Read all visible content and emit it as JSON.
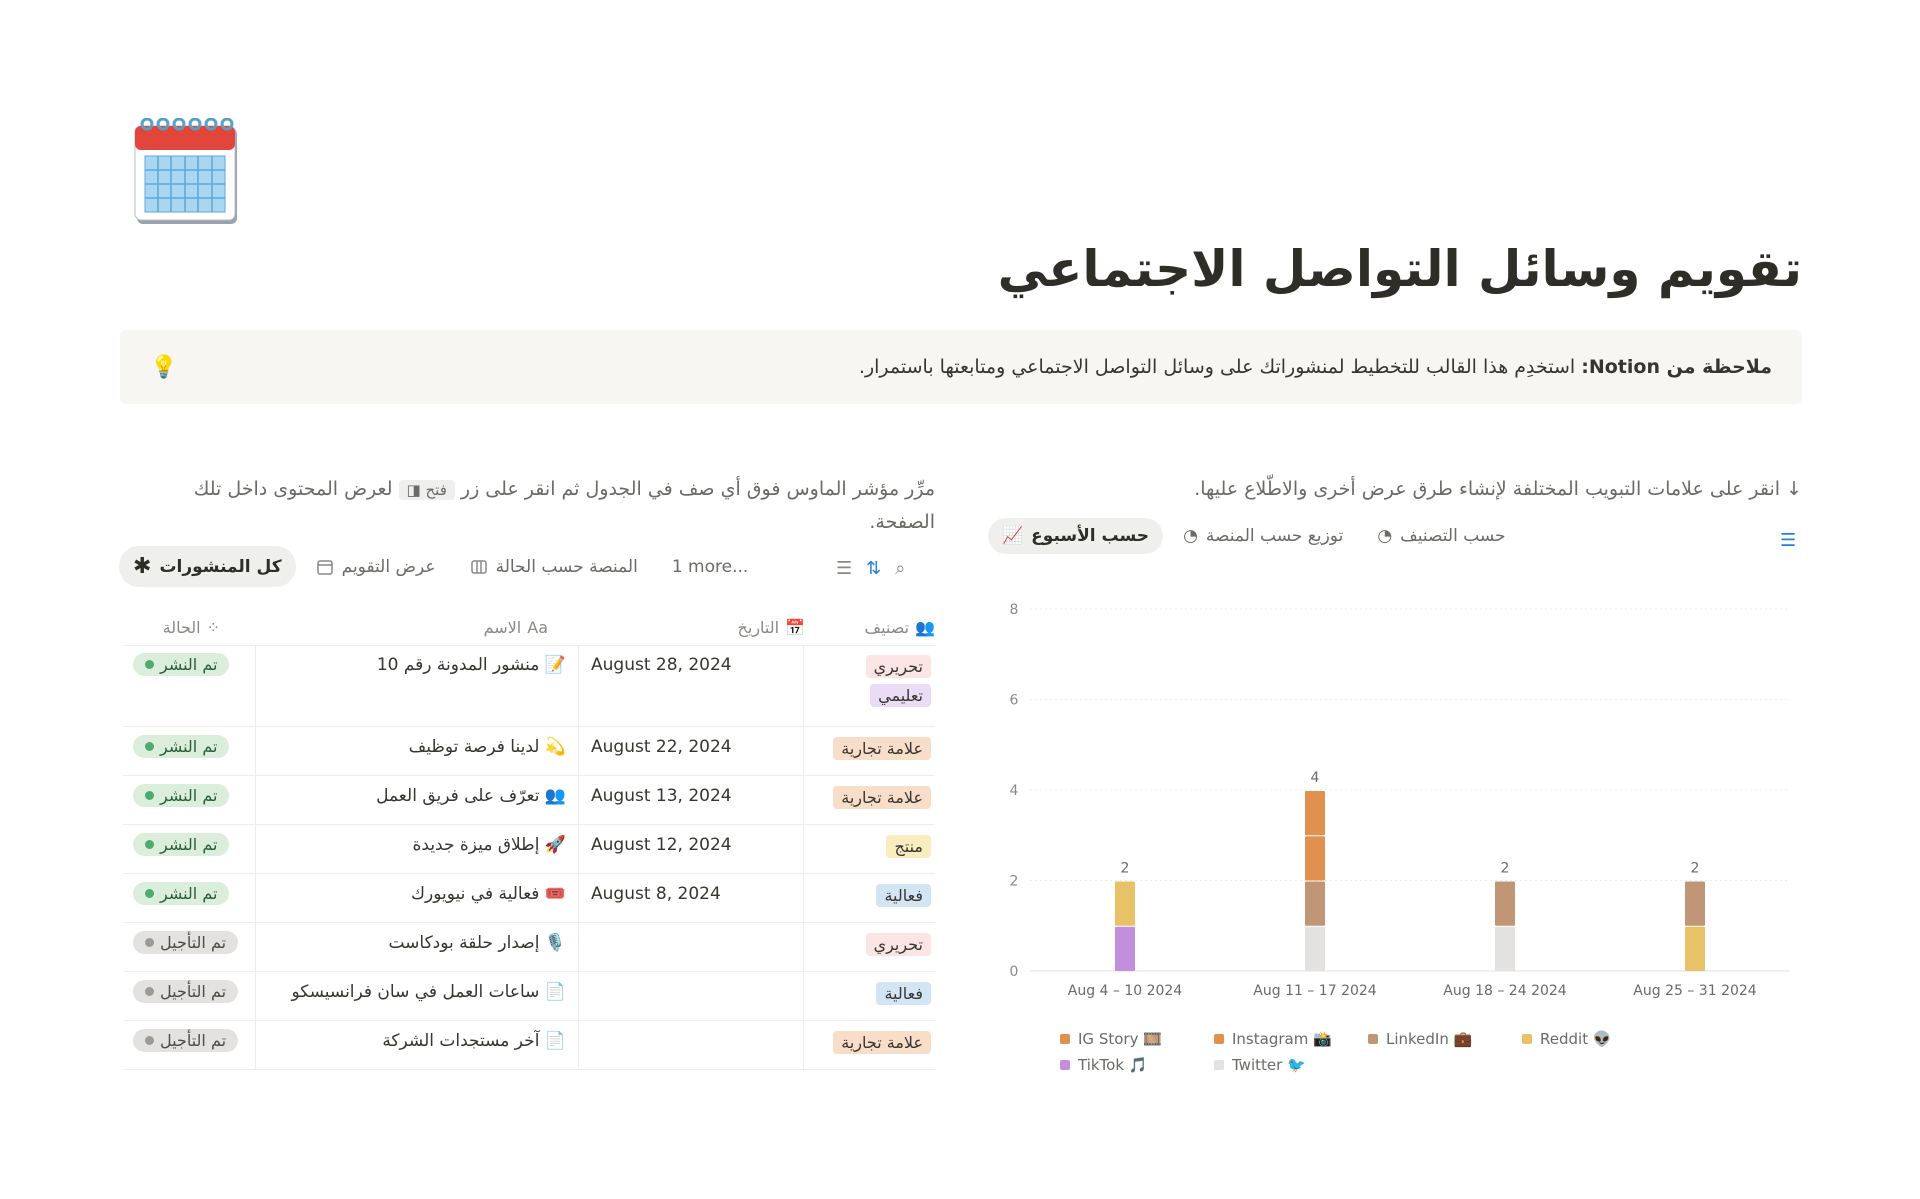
{
  "page": {
    "title": "تقويم وسائل التواصل الاجتماعي",
    "icon": "calendar-icon"
  },
  "callout": {
    "icon": "lightbulb-icon",
    "bold": "ملاحظة من Notion:",
    "text": " استخدِم هذا القالب للتخطيط لمنشوراتك على وسائل التواصل الاجتماعي ومتابعتها باستمرار."
  },
  "left": {
    "desc_before": "مرِّر مؤشر الماوس فوق أي صف في الجدول ثم انقر على زر ",
    "open_label": "فتح",
    "desc_after": " لعرض المحتوى داخل تلك الصفحة.",
    "tabs": [
      {
        "label": "كل المنشورات",
        "icon": "asterisk-icon"
      },
      {
        "label": "عرض التقويم",
        "icon": "calendar-icon"
      },
      {
        "label": "المنصة حسب الحالة",
        "icon": "board-icon"
      },
      {
        "label": "1 more..."
      }
    ],
    "columns": {
      "status": "الحالة",
      "name": "الاسم",
      "date": "التاريخ",
      "category": "تصنيف"
    },
    "rows": [
      {
        "status": "تم النشر",
        "name": "منشور المدونة رقم 10",
        "emoji": "📝",
        "date": "August 28, 2024",
        "tags": [
          "تحريري",
          "تعليمي"
        ]
      },
      {
        "status": "تم النشر",
        "name": "لدينا فرصة توظيف",
        "emoji": "💫",
        "date": "August 22, 2024",
        "tags": [
          "علامة تجارية"
        ]
      },
      {
        "status": "تم النشر",
        "name": "تعرّف على فريق العمل",
        "emoji": "👥",
        "date": "August 13, 2024",
        "tags": [
          "علامة تجارية"
        ]
      },
      {
        "status": "تم النشر",
        "name": "إطلاق ميزة جديدة",
        "emoji": "🚀",
        "date": "August 12, 2024",
        "tags": [
          "منتج"
        ]
      },
      {
        "status": "تم النشر",
        "name": "فعالية في نيويورك",
        "emoji": "🎟️",
        "date": "August 8, 2024",
        "tags": [
          "فعالية"
        ]
      },
      {
        "status": "تم التأجيل",
        "name": "إصدار حلقة بودكاست",
        "emoji": "🎙️",
        "date": "",
        "tags": [
          "تحريري"
        ]
      },
      {
        "status": "تم التأجيل",
        "name": "ساعات العمل في سان فرانسيسكو",
        "emoji": "📄",
        "date": "",
        "tags": [
          "فعالية"
        ]
      },
      {
        "status": "تم التأجيل",
        "name": "آخر مستجدات الشركة",
        "emoji": "📄",
        "date": "",
        "tags": [
          "علامة تجارية"
        ]
      }
    ],
    "tag_colors": {
      "تحريري": "#fbe4e4",
      "تعليمي": "#eadcf6",
      "علامة تجارية": "#f8ddc9",
      "منتج": "#f9ecbf",
      "فعالية": "#d3e5f5"
    },
    "status_colors": {
      "تم النشر": "#4dab6f",
      "تم التأجيل": "#9b9a97"
    }
  },
  "right": {
    "desc": "↓ انقر على علامات التبويب المختلفة لإنشاء طرق عرض أخرى والاطّلاع عليها.",
    "tabs": [
      {
        "label": "حسب الأسبوع",
        "icon": "chart-icon"
      },
      {
        "label": "توزيع حسب المنصة",
        "icon": "pie-icon"
      },
      {
        "label": "حسب التصنيف",
        "icon": "pie-icon"
      }
    ]
  },
  "chart_data": {
    "type": "bar",
    "stacked": true,
    "ylim": [
      0,
      8
    ],
    "yticks": [
      0,
      2,
      4,
      6,
      8
    ],
    "grid": true,
    "legend": "bottom",
    "categories": [
      "Aug 4 – 10 2024",
      "Aug 11 – 17 2024",
      "Aug 18 – 24 2024",
      "Aug 25 – 31 2024"
    ],
    "totals": [
      2,
      4,
      2,
      2
    ],
    "series": [
      {
        "name": "Twitter 🐦",
        "color": "#e3e2e0",
        "values": [
          0,
          1,
          1,
          0
        ]
      },
      {
        "name": "TikTok 🎵",
        "color": "#c38fdc",
        "values": [
          1,
          0,
          0,
          0
        ]
      },
      {
        "name": "Reddit 👽",
        "color": "#e8c267",
        "values": [
          1,
          0,
          0,
          1
        ]
      },
      {
        "name": "LinkedIn 💼",
        "color": "#c19677",
        "values": [
          0,
          1,
          1,
          1
        ]
      },
      {
        "name": "Instagram 📸",
        "color": "#e0914f",
        "values": [
          0,
          1,
          0,
          0
        ]
      },
      {
        "name": "IG Story 🎞️",
        "color": "#e0914f",
        "values": [
          0,
          1,
          0,
          0
        ]
      }
    ],
    "legend_order": [
      "IG Story 🎞️",
      "Instagram 📸",
      "LinkedIn 💼",
      "Reddit 👽",
      "TikTok 🎵",
      "Twitter 🐦"
    ]
  }
}
